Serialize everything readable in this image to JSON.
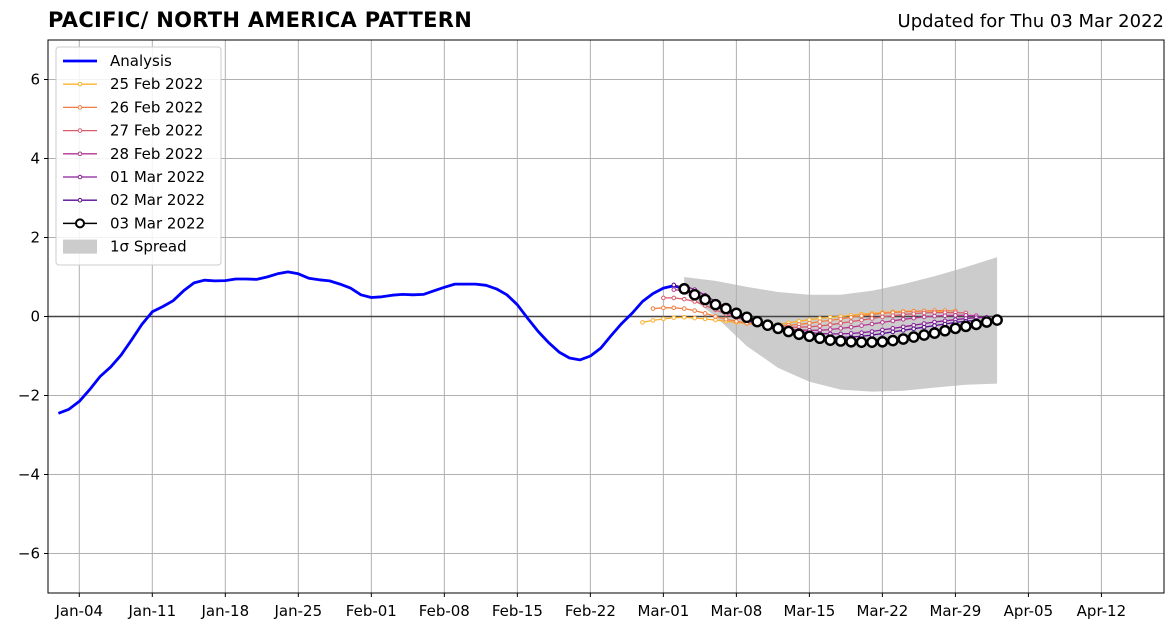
{
  "header": {
    "title": "PACIFIC/ NORTH AMERICA PATTERN",
    "updated": "Updated for Thu 03 Mar 2022"
  },
  "chart_data": {
    "type": "line",
    "title": "PACIFIC/ NORTH AMERICA PATTERN",
    "subtitle": "Updated for Thu 03 Mar 2022",
    "xlabel": "",
    "ylabel": "",
    "xlim": [
      "2022-01-01",
      "2022-04-18"
    ],
    "ylim": [
      -7,
      7
    ],
    "grid": true,
    "legend_position": "top-left",
    "x_ticks": [
      {
        "date": "2022-01-04",
        "label": "Jan-04"
      },
      {
        "date": "2022-01-11",
        "label": "Jan-11"
      },
      {
        "date": "2022-01-18",
        "label": "Jan-18"
      },
      {
        "date": "2022-01-25",
        "label": "Jan-25"
      },
      {
        "date": "2022-02-01",
        "label": "Feb-01"
      },
      {
        "date": "2022-02-08",
        "label": "Feb-08"
      },
      {
        "date": "2022-02-15",
        "label": "Feb-15"
      },
      {
        "date": "2022-02-22",
        "label": "Feb-22"
      },
      {
        "date": "2022-03-01",
        "label": "Mar-01"
      },
      {
        "date": "2022-03-08",
        "label": "Mar-08"
      },
      {
        "date": "2022-03-15",
        "label": "Mar-15"
      },
      {
        "date": "2022-03-22",
        "label": "Mar-22"
      },
      {
        "date": "2022-03-29",
        "label": "Mar-29"
      },
      {
        "date": "2022-04-05",
        "label": "Apr-05"
      },
      {
        "date": "2022-04-12",
        "label": "Apr-12"
      }
    ],
    "y_ticks": [
      {
        "value": 6,
        "label": "6"
      },
      {
        "value": 4,
        "label": "4"
      },
      {
        "value": 2,
        "label": "2"
      },
      {
        "value": 0,
        "label": "0"
      },
      {
        "value": -2,
        "label": "−2"
      },
      {
        "value": -4,
        "label": "−4"
      },
      {
        "value": -6,
        "label": "−6"
      }
    ],
    "legend": [
      {
        "key": "analysis",
        "label": "Analysis",
        "kind": "line",
        "color": "#0000ff"
      },
      {
        "key": "f0225",
        "label": "25 Feb 2022",
        "kind": "marker-line",
        "color": "#fbb02d"
      },
      {
        "key": "f0226",
        "label": "26 Feb 2022",
        "kind": "marker-line",
        "color": "#f07f45"
      },
      {
        "key": "f0227",
        "label": "27 Feb 2022",
        "kind": "marker-line",
        "color": "#d95c6e"
      },
      {
        "key": "f0228",
        "label": "28 Feb 2022",
        "kind": "marker-line",
        "color": "#b5358f"
      },
      {
        "key": "f0301",
        "label": "01 Mar 2022",
        "kind": "marker-line",
        "color": "#8a1c9a"
      },
      {
        "key": "f0302",
        "label": "02 Mar 2022",
        "kind": "marker-line",
        "color": "#5a0a91"
      },
      {
        "key": "f0303",
        "label": "03 Mar 2022",
        "kind": "big-marker-line",
        "color": "#000000"
      },
      {
        "key": "spread",
        "label": "1σ Spread",
        "kind": "patch",
        "color": "#cccccc"
      }
    ],
    "spread": {
      "name": "1σ Spread",
      "color": "#cccccc",
      "x": [
        "2022-03-03",
        "2022-03-06",
        "2022-03-09",
        "2022-03-12",
        "2022-03-15",
        "2022-03-18",
        "2022-03-21",
        "2022-03-24",
        "2022-03-27",
        "2022-03-30",
        "2022-04-02"
      ],
      "upper": [
        1.0,
        0.9,
        0.75,
        0.62,
        0.55,
        0.55,
        0.65,
        0.82,
        1.02,
        1.25,
        1.5
      ],
      "lower": [
        0.6,
        0.0,
        -0.75,
        -1.3,
        -1.65,
        -1.85,
        -1.9,
        -1.88,
        -1.8,
        -1.73,
        -1.7
      ]
    },
    "series": [
      {
        "key": "analysis",
        "name": "Analysis",
        "color": "#0000ff",
        "marker": "none",
        "x": [
          "2022-01-02",
          "2022-01-03",
          "2022-01-04",
          "2022-01-05",
          "2022-01-06",
          "2022-01-07",
          "2022-01-08",
          "2022-01-09",
          "2022-01-10",
          "2022-01-11",
          "2022-01-12",
          "2022-01-13",
          "2022-01-14",
          "2022-01-15",
          "2022-01-16",
          "2022-01-17",
          "2022-01-18",
          "2022-01-19",
          "2022-01-20",
          "2022-01-21",
          "2022-01-22",
          "2022-01-23",
          "2022-01-24",
          "2022-01-25",
          "2022-01-26",
          "2022-01-27",
          "2022-01-28",
          "2022-01-29",
          "2022-01-30",
          "2022-01-31",
          "2022-02-01",
          "2022-02-02",
          "2022-02-03",
          "2022-02-04",
          "2022-02-05",
          "2022-02-06",
          "2022-02-07",
          "2022-02-08",
          "2022-02-09",
          "2022-02-10",
          "2022-02-11",
          "2022-02-12",
          "2022-02-13",
          "2022-02-14",
          "2022-02-15",
          "2022-02-16",
          "2022-02-17",
          "2022-02-18",
          "2022-02-19",
          "2022-02-20",
          "2022-02-21",
          "2022-02-22",
          "2022-02-23",
          "2022-02-24",
          "2022-02-25",
          "2022-02-26",
          "2022-02-27",
          "2022-02-28",
          "2022-03-01",
          "2022-03-02",
          "2022-03-03"
        ],
        "values": [
          -2.45,
          -2.35,
          -2.15,
          -1.85,
          -1.52,
          -1.28,
          -0.98,
          -0.6,
          -0.2,
          0.12,
          0.25,
          0.4,
          0.65,
          0.85,
          0.92,
          0.9,
          0.91,
          0.95,
          0.95,
          0.94,
          1.0,
          1.08,
          1.13,
          1.08,
          0.97,
          0.93,
          0.9,
          0.82,
          0.72,
          0.55,
          0.48,
          0.5,
          0.54,
          0.56,
          0.55,
          0.56,
          0.65,
          0.74,
          0.82,
          0.82,
          0.82,
          0.79,
          0.7,
          0.55,
          0.3,
          -0.05,
          -0.38,
          -0.66,
          -0.9,
          -1.05,
          -1.1,
          -1.0,
          -0.8,
          -0.48,
          -0.18,
          0.08,
          0.38,
          0.58,
          0.72,
          0.78,
          0.7
        ]
      },
      {
        "key": "f0225",
        "name": "25 Feb 2022",
        "color": "#fbb02d",
        "marker": "small",
        "x": [
          "2022-02-27",
          "2022-02-28",
          "2022-03-01",
          "2022-03-02",
          "2022-03-03",
          "2022-03-04",
          "2022-03-05",
          "2022-03-06",
          "2022-03-07",
          "2022-03-08",
          "2022-03-09",
          "2022-03-10",
          "2022-03-11",
          "2022-03-12",
          "2022-03-13",
          "2022-03-14",
          "2022-03-15",
          "2022-03-16",
          "2022-03-17",
          "2022-03-18",
          "2022-03-19",
          "2022-03-20",
          "2022-03-21",
          "2022-03-22",
          "2022-03-23",
          "2022-03-24",
          "2022-03-25",
          "2022-03-26",
          "2022-03-27",
          "2022-03-28"
        ],
        "values": [
          -0.15,
          -0.1,
          -0.06,
          -0.03,
          -0.02,
          -0.04,
          -0.06,
          -0.09,
          -0.12,
          -0.15,
          -0.18,
          -0.2,
          -0.22,
          -0.2,
          -0.16,
          -0.12,
          -0.08,
          -0.05,
          -0.02,
          0.0,
          0.03,
          0.06,
          0.08,
          0.1,
          0.12,
          0.13,
          0.14,
          0.14,
          0.13,
          0.12
        ]
      },
      {
        "key": "f0226",
        "name": "26 Feb 2022",
        "color": "#f07f45",
        "marker": "small",
        "x": [
          "2022-02-28",
          "2022-03-01",
          "2022-03-02",
          "2022-03-03",
          "2022-03-04",
          "2022-03-05",
          "2022-03-06",
          "2022-03-07",
          "2022-03-08",
          "2022-03-09",
          "2022-03-10",
          "2022-03-11",
          "2022-03-12",
          "2022-03-13",
          "2022-03-14",
          "2022-03-15",
          "2022-03-16",
          "2022-03-17",
          "2022-03-18",
          "2022-03-19",
          "2022-03-20",
          "2022-03-21",
          "2022-03-22",
          "2022-03-23",
          "2022-03-24",
          "2022-03-25",
          "2022-03-26",
          "2022-03-27",
          "2022-03-28",
          "2022-03-29"
        ],
        "values": [
          0.2,
          0.22,
          0.22,
          0.2,
          0.15,
          0.08,
          0.0,
          -0.07,
          -0.12,
          -0.17,
          -0.2,
          -0.22,
          -0.23,
          -0.22,
          -0.2,
          -0.17,
          -0.13,
          -0.1,
          -0.06,
          -0.02,
          0.02,
          0.05,
          0.08,
          0.1,
          0.12,
          0.13,
          0.14,
          0.15,
          0.15,
          0.14
        ]
      },
      {
        "key": "f0227",
        "name": "27 Feb 2022",
        "color": "#d95c6e",
        "marker": "small",
        "x": [
          "2022-03-01",
          "2022-03-02",
          "2022-03-03",
          "2022-03-04",
          "2022-03-05",
          "2022-03-06",
          "2022-03-07",
          "2022-03-08",
          "2022-03-09",
          "2022-03-10",
          "2022-03-11",
          "2022-03-12",
          "2022-03-13",
          "2022-03-14",
          "2022-03-15",
          "2022-03-16",
          "2022-03-17",
          "2022-03-18",
          "2022-03-19",
          "2022-03-20",
          "2022-03-21",
          "2022-03-22",
          "2022-03-23",
          "2022-03-24",
          "2022-03-25",
          "2022-03-26",
          "2022-03-27",
          "2022-03-28",
          "2022-03-29",
          "2022-03-30"
        ],
        "values": [
          0.47,
          0.47,
          0.44,
          0.38,
          0.28,
          0.17,
          0.06,
          -0.03,
          -0.1,
          -0.16,
          -0.21,
          -0.25,
          -0.27,
          -0.27,
          -0.26,
          -0.24,
          -0.21,
          -0.17,
          -0.13,
          -0.09,
          -0.05,
          -0.01,
          0.02,
          0.05,
          0.07,
          0.09,
          0.1,
          0.1,
          0.1,
          0.09
        ]
      },
      {
        "key": "f0228",
        "name": "28 Feb 2022",
        "color": "#b5358f",
        "marker": "small",
        "x": [
          "2022-03-02",
          "2022-03-03",
          "2022-03-04",
          "2022-03-05",
          "2022-03-06",
          "2022-03-07",
          "2022-03-08",
          "2022-03-09",
          "2022-03-10",
          "2022-03-11",
          "2022-03-12",
          "2022-03-13",
          "2022-03-14",
          "2022-03-15",
          "2022-03-16",
          "2022-03-17",
          "2022-03-18",
          "2022-03-19",
          "2022-03-20",
          "2022-03-21",
          "2022-03-22",
          "2022-03-23",
          "2022-03-24",
          "2022-03-25",
          "2022-03-26",
          "2022-03-27",
          "2022-03-28",
          "2022-03-29",
          "2022-03-30",
          "2022-03-31"
        ],
        "values": [
          0.68,
          0.65,
          0.55,
          0.42,
          0.28,
          0.14,
          0.02,
          -0.08,
          -0.16,
          -0.23,
          -0.28,
          -0.32,
          -0.34,
          -0.35,
          -0.35,
          -0.33,
          -0.3,
          -0.27,
          -0.23,
          -0.19,
          -0.15,
          -0.11,
          -0.07,
          -0.04,
          -0.01,
          0.01,
          0.02,
          0.03,
          0.03,
          0.02
        ]
      },
      {
        "key": "f0301",
        "name": "01 Mar 2022",
        "color": "#8a1c9a",
        "marker": "small",
        "x": [
          "2022-03-03",
          "2022-03-04",
          "2022-03-05",
          "2022-03-06",
          "2022-03-07",
          "2022-03-08",
          "2022-03-09",
          "2022-03-10",
          "2022-03-11",
          "2022-03-12",
          "2022-03-13",
          "2022-03-14",
          "2022-03-15",
          "2022-03-16",
          "2022-03-17",
          "2022-03-18",
          "2022-03-19",
          "2022-03-20",
          "2022-03-21",
          "2022-03-22",
          "2022-03-23",
          "2022-03-24",
          "2022-03-25",
          "2022-03-26",
          "2022-03-27",
          "2022-03-28",
          "2022-03-29",
          "2022-03-30",
          "2022-03-31",
          "2022-04-01"
        ],
        "values": [
          0.78,
          0.68,
          0.54,
          0.38,
          0.23,
          0.09,
          -0.03,
          -0.13,
          -0.21,
          -0.28,
          -0.34,
          -0.38,
          -0.41,
          -0.43,
          -0.44,
          -0.44,
          -0.43,
          -0.41,
          -0.38,
          -0.34,
          -0.3,
          -0.26,
          -0.22,
          -0.18,
          -0.14,
          -0.11,
          -0.08,
          -0.05,
          -0.03,
          -0.02
        ]
      },
      {
        "key": "f0302",
        "name": "02 Mar 2022",
        "color": "#5a0a91",
        "marker": "small",
        "x": [
          "2022-03-02",
          "2022-03-03",
          "2022-03-04",
          "2022-03-05",
          "2022-03-06",
          "2022-03-07",
          "2022-03-08",
          "2022-03-09",
          "2022-03-10",
          "2022-03-11",
          "2022-03-12",
          "2022-03-13",
          "2022-03-14",
          "2022-03-15",
          "2022-03-16",
          "2022-03-17",
          "2022-03-18",
          "2022-03-19",
          "2022-03-20",
          "2022-03-21",
          "2022-03-22",
          "2022-03-23",
          "2022-03-24",
          "2022-03-25",
          "2022-03-26",
          "2022-03-27",
          "2022-03-28",
          "2022-03-29",
          "2022-03-30",
          "2022-03-31"
        ],
        "values": [
          0.8,
          0.72,
          0.58,
          0.42,
          0.27,
          0.13,
          0.01,
          -0.1,
          -0.19,
          -0.27,
          -0.34,
          -0.4,
          -0.45,
          -0.49,
          -0.52,
          -0.53,
          -0.53,
          -0.52,
          -0.5,
          -0.47,
          -0.43,
          -0.39,
          -0.35,
          -0.31,
          -0.27,
          -0.23,
          -0.19,
          -0.15,
          -0.12,
          -0.1
        ]
      },
      {
        "key": "f0303",
        "name": "03 Mar 2022",
        "color": "#000000",
        "marker": "big",
        "x": [
          "2022-03-03",
          "2022-03-04",
          "2022-03-05",
          "2022-03-06",
          "2022-03-07",
          "2022-03-08",
          "2022-03-09",
          "2022-03-10",
          "2022-03-11",
          "2022-03-12",
          "2022-03-13",
          "2022-03-14",
          "2022-03-15",
          "2022-03-16",
          "2022-03-17",
          "2022-03-18",
          "2022-03-19",
          "2022-03-20",
          "2022-03-21",
          "2022-03-22",
          "2022-03-23",
          "2022-03-24",
          "2022-03-25",
          "2022-03-26",
          "2022-03-27",
          "2022-03-28",
          "2022-03-29",
          "2022-03-30",
          "2022-03-31",
          "2022-04-01",
          "2022-04-02"
        ],
        "values": [
          0.7,
          0.55,
          0.43,
          0.3,
          0.2,
          0.08,
          -0.02,
          -0.13,
          -0.22,
          -0.3,
          -0.38,
          -0.45,
          -0.5,
          -0.55,
          -0.6,
          -0.62,
          -0.64,
          -0.65,
          -0.65,
          -0.64,
          -0.61,
          -0.57,
          -0.52,
          -0.47,
          -0.42,
          -0.36,
          -0.3,
          -0.25,
          -0.2,
          -0.14,
          -0.09
        ]
      }
    ]
  }
}
